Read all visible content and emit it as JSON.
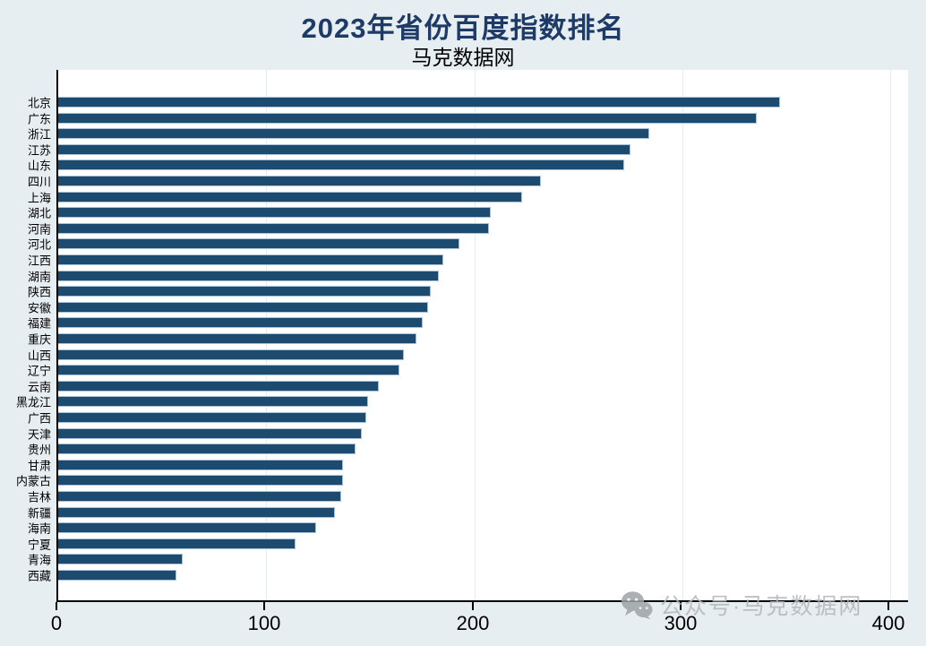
{
  "page": {
    "background": "#e6eef2",
    "plot_background": "#ffffff"
  },
  "chart_data": {
    "type": "bar",
    "orientation": "horizontal",
    "title": "2023年省份百度指数排名",
    "subtitle": "马克数据网",
    "categories": [
      "北京",
      "广东",
      "浙江",
      "江苏",
      "山东",
      "四川",
      "上海",
      "湖北",
      "河南",
      "河北",
      "江西",
      "湖南",
      "陕西",
      "安徽",
      "福建",
      "重庆",
      "山西",
      "辽宁",
      "云南",
      "黑龙江",
      "广西",
      "天津",
      "贵州",
      "甘肃",
      "内蒙古",
      "吉林",
      "新疆",
      "海南",
      "宁夏",
      "青海",
      "西藏"
    ],
    "values": [
      347,
      336,
      284,
      275,
      272,
      232,
      223,
      208,
      207,
      193,
      185,
      183,
      179,
      178,
      175,
      172,
      166,
      164,
      154,
      149,
      148,
      146,
      143,
      137,
      137,
      136,
      133,
      124,
      114,
      60,
      57
    ],
    "xlabel": "",
    "ylabel": "",
    "xlim": [
      0,
      400
    ],
    "xticks": [
      "0",
      "100",
      "200",
      "300",
      "400"
    ],
    "grid": true,
    "legend": "none",
    "bar_color": "#1d4a6f",
    "bar_border_color": "#a9c2d8",
    "title_color": "#1e3a66",
    "gridline_color": "#e4edf3",
    "axis_color": "#000000"
  },
  "watermark": {
    "icon": "wechat-icon",
    "text": "公众号·马克数据网",
    "color": "#b3b6b9"
  }
}
